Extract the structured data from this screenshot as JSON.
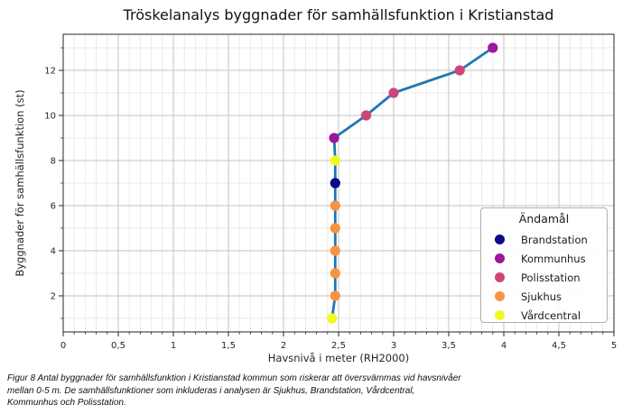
{
  "chart_data": {
    "type": "line",
    "title": "Tröskelanalys byggnader för samhällsfunktion i Kristianstad",
    "xlabel": "Havsnivå i meter (RH2000)",
    "ylabel": "Byggnader för samhällsfunktion (st)",
    "xlim": [
      0,
      5
    ],
    "ylim": [
      0.4,
      13.6
    ],
    "grid": true,
    "x_minor_step": 0.1,
    "y_minor_step": 1,
    "x_major_ticks": [
      {
        "v": 0,
        "label": "0"
      },
      {
        "v": 0.5,
        "label": "0,5"
      },
      {
        "v": 1,
        "label": "1"
      },
      {
        "v": 1.5,
        "label": "1,5"
      },
      {
        "v": 2,
        "label": "2"
      },
      {
        "v": 2.5,
        "label": "2,5"
      },
      {
        "v": 3,
        "label": "3"
      },
      {
        "v": 3.5,
        "label": "3,5"
      },
      {
        "v": 4,
        "label": "4"
      },
      {
        "v": 4.5,
        "label": "4,5"
      },
      {
        "v": 5,
        "label": "5"
      }
    ],
    "y_major_ticks": [
      {
        "v": 2,
        "label": "2"
      },
      {
        "v": 4,
        "label": "4"
      },
      {
        "v": 6,
        "label": "6"
      },
      {
        "v": 8,
        "label": "8"
      },
      {
        "v": 10,
        "label": "10"
      },
      {
        "v": 12,
        "label": "12"
      }
    ],
    "line_color": "#1f77b4",
    "legend": {
      "title": "Ändamål",
      "position": "center right",
      "entries": [
        {
          "label": "Brandstation",
          "color": "#0d0887"
        },
        {
          "label": "Kommunhus",
          "color": "#9c179e"
        },
        {
          "label": "Polisstation",
          "color": "#cc4778"
        },
        {
          "label": "Sjukhus",
          "color": "#f89441"
        },
        {
          "label": "Vårdcentral",
          "color": "#f0f921"
        }
      ]
    },
    "points": [
      {
        "x": 2.44,
        "y": 1,
        "category": "Vårdcentral"
      },
      {
        "x": 2.47,
        "y": 2,
        "category": "Sjukhus"
      },
      {
        "x": 2.47,
        "y": 3,
        "category": "Sjukhus"
      },
      {
        "x": 2.47,
        "y": 4,
        "category": "Sjukhus"
      },
      {
        "x": 2.47,
        "y": 5,
        "category": "Sjukhus"
      },
      {
        "x": 2.47,
        "y": 6,
        "category": "Sjukhus"
      },
      {
        "x": 2.47,
        "y": 7,
        "category": "Brandstation"
      },
      {
        "x": 2.47,
        "y": 8,
        "category": "Vårdcentral"
      },
      {
        "x": 2.46,
        "y": 9,
        "category": "Kommunhus"
      },
      {
        "x": 2.75,
        "y": 10,
        "category": "Polisstation"
      },
      {
        "x": 3.0,
        "y": 11,
        "category": "Polisstation"
      },
      {
        "x": 3.6,
        "y": 12,
        "category": "Polisstation"
      },
      {
        "x": 3.9,
        "y": 13,
        "category": "Kommunhus"
      }
    ]
  },
  "caption_lines": [
    "Figur 8 Antal byggnader för samhällsfunktion i Kristianstad kommun som riskerar att översvämmas vid havsnivåer",
    "mellan 0-5 m. De samhällsfunktioner som inkluderas i analysen är Sjukhus, Brandstation, Vårdcentral,",
    "Kommunhus och Polisstation."
  ]
}
